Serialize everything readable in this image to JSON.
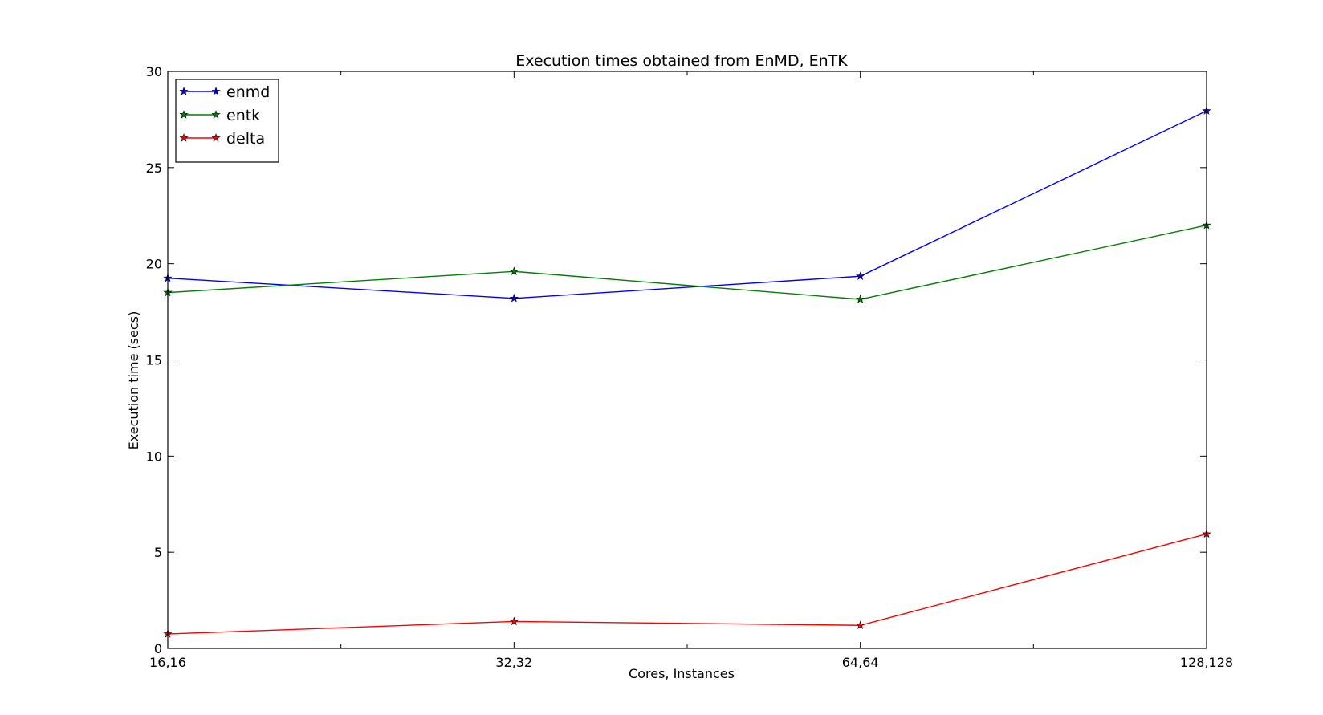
{
  "chart_data": {
    "type": "line",
    "title": "Execution times obtained from EnMD, EnTK",
    "xlabel": "Cores, Instances",
    "ylabel": "Execution time (secs)",
    "categories": [
      "16,16",
      "32,32",
      "64,64",
      "128,128"
    ],
    "xlim": [
      0,
      3
    ],
    "x_minor_ticks": [
      0.5,
      1.5,
      2.5
    ],
    "ylim": [
      0,
      30
    ],
    "y_ticks": [
      0,
      5,
      10,
      15,
      20,
      25,
      30
    ],
    "y_tick_labels": [
      "0",
      "5",
      "10",
      "15",
      "20",
      "25",
      "30"
    ],
    "grid": false,
    "legend_position": "top-left",
    "marker": "star",
    "series": [
      {
        "name": "enmd",
        "color": "#0000ff",
        "values": [
          19.25,
          18.2,
          19.35,
          27.95
        ]
      },
      {
        "name": "entk",
        "color": "#008000",
        "values": [
          18.5,
          19.6,
          18.15,
          22.0
        ]
      },
      {
        "name": "delta",
        "color": "#ff0000",
        "values": [
          0.75,
          1.4,
          1.2,
          5.95
        ]
      }
    ]
  }
}
